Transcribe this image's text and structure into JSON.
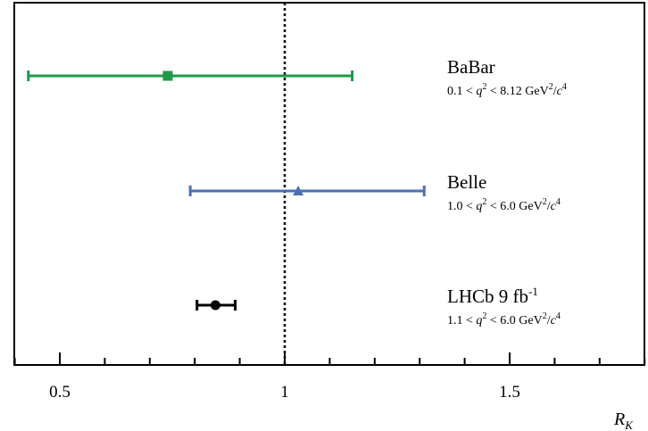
{
  "chart_data": {
    "type": "scatter",
    "xlabel": "R",
    "xlabel_sub": "K",
    "xlim": [
      0.4,
      1.8
    ],
    "x_ticks": [
      0.5,
      1.0,
      1.5
    ],
    "x_tick_labels": [
      "0.5",
      "1",
      "1.5"
    ],
    "reference_line": {
      "x": 1.0,
      "style": "dotted"
    },
    "grid": false,
    "measurements": [
      {
        "experiment": "BaBar",
        "range_pre": "0.1 < ",
        "range_var": "q",
        "range_mid": " < 8.12 GeV",
        "range_unit_var": "c",
        "value": 0.74,
        "err_low": 0.31,
        "err_high": 0.41,
        "marker": "square",
        "color": "#1e9a4a"
      },
      {
        "experiment": "Belle",
        "range_pre": "1.0 < ",
        "range_var": "q",
        "range_mid": " < 6.0 GeV",
        "range_unit_var": "c",
        "value": 1.03,
        "err_low": 0.24,
        "err_high": 0.28,
        "marker": "triangle",
        "color": "#4a6fb5"
      },
      {
        "experiment": "LHCb 9 fb",
        "experiment_sup": "-1",
        "range_pre": "1.1 < ",
        "range_var": "q",
        "range_mid": " < 6.0 GeV",
        "range_unit_var": "c",
        "value": 0.846,
        "err_low": 0.041,
        "err_high": 0.044,
        "marker": "circle",
        "color": "#000000"
      }
    ]
  }
}
